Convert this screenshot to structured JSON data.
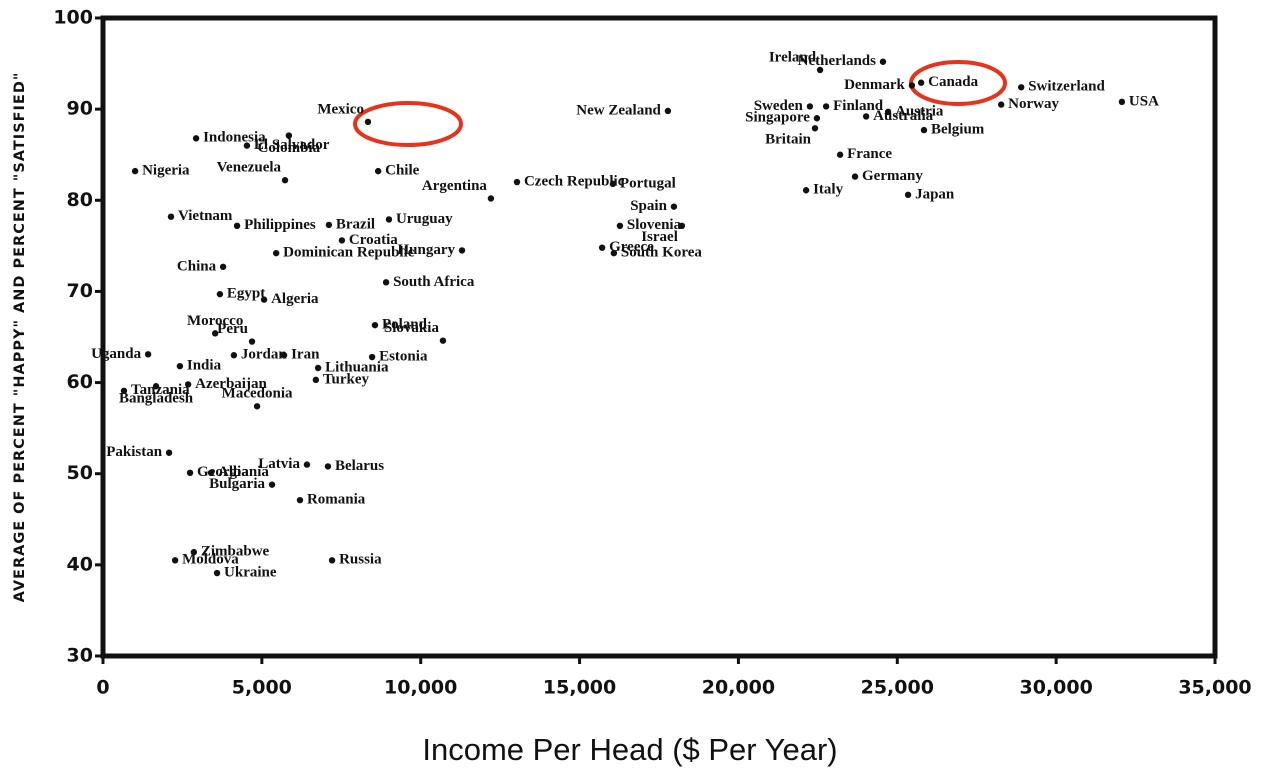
{
  "chart_data": {
    "type": "scatter",
    "x_label": "Income Per Head ($ Per Year)",
    "y_label": "AVERAGE OF PERCENT \"HAPPY\" AND PERCENT \"SATISFIED\"",
    "xlim": [
      0,
      35000
    ],
    "ylim": [
      30,
      100
    ],
    "xticks": [
      0,
      {
        "value": 5000,
        "label": "5,000"
      },
      {
        "value": 10000,
        "label": "10,000"
      },
      {
        "value": 15000,
        "label": "15,000"
      },
      {
        "value": 20000,
        "label": "20,000"
      },
      {
        "value": 25000,
        "label": "25,000"
      },
      {
        "value": 30000,
        "label": "30,000"
      },
      {
        "value": 35000,
        "label": "35,000"
      }
    ],
    "yticks": [
      30,
      40,
      50,
      60,
      70,
      80,
      90,
      100
    ],
    "color": "#111111",
    "points": [
      {
        "label": "Ireland",
        "x": 22570,
        "y": 94.3
      },
      {
        "label": "Netherlands",
        "x": 24550,
        "y": 95.2
      },
      {
        "label": "Denmark",
        "x": 25460,
        "y": 92.6
      },
      {
        "label": "Canada",
        "x": 25750,
        "y": 92.9
      },
      {
        "label": "Switzerland",
        "x": 28900,
        "y": 92.4
      },
      {
        "label": "USA",
        "x": 32070,
        "y": 90.8
      },
      {
        "label": "Norway",
        "x": 28270,
        "y": 90.5
      },
      {
        "label": "New Zealand",
        "x": 17780,
        "y": 89.8
      },
      {
        "label": "Sweden",
        "x": 22250,
        "y": 90.3
      },
      {
        "label": "Finland",
        "x": 22760,
        "y": 90.3
      },
      {
        "label": "Singapore",
        "x": 22470,
        "y": 89.0
      },
      {
        "label": "Austria",
        "x": 24710,
        "y": 89.7
      },
      {
        "label": "Australia",
        "x": 24020,
        "y": 89.2
      },
      {
        "label": "Britain",
        "x": 22410,
        "y": 87.9
      },
      {
        "label": "Belgium",
        "x": 25840,
        "y": 87.7
      },
      {
        "label": "France",
        "x": 23200,
        "y": 85.0
      },
      {
        "label": "Germany",
        "x": 23670,
        "y": 82.6
      },
      {
        "label": "Italy",
        "x": 22130,
        "y": 81.1
      },
      {
        "label": "Japan",
        "x": 25340,
        "y": 80.6
      },
      {
        "label": "Mexico",
        "x": 8340,
        "y": 88.6
      },
      {
        "label": "Indonesia",
        "x": 2930,
        "y": 86.8
      },
      {
        "label": "Colombia",
        "x": 5850,
        "y": 87.1
      },
      {
        "label": "El Salvador",
        "x": 4530,
        "y": 86.0
      },
      {
        "label": "Nigeria",
        "x": 1010,
        "y": 83.2
      },
      {
        "label": "Chile",
        "x": 8660,
        "y": 83.2
      },
      {
        "label": "Venezuela",
        "x": 5730,
        "y": 82.2
      },
      {
        "label": "Czech Republic",
        "x": 13030,
        "y": 82.0
      },
      {
        "label": "Portugal",
        "x": 16050,
        "y": 81.8
      },
      {
        "label": "Argentina",
        "x": 12210,
        "y": 80.2
      },
      {
        "label": "Vietnam",
        "x": 2140,
        "y": 78.2
      },
      {
        "label": "Brazil",
        "x": 7110,
        "y": 77.3
      },
      {
        "label": "Uruguay",
        "x": 9000,
        "y": 77.9
      },
      {
        "label": "Spain",
        "x": 17970,
        "y": 79.3
      },
      {
        "label": "Slovenia",
        "x": 16270,
        "y": 77.2
      },
      {
        "label": "Israel",
        "x": 18220,
        "y": 77.2
      },
      {
        "label": "Philippines",
        "x": 4220,
        "y": 77.2
      },
      {
        "label": "Croatia",
        "x": 7520,
        "y": 75.6
      },
      {
        "label": "Hungary",
        "x": 11300,
        "y": 74.5
      },
      {
        "label": "Greece",
        "x": 15710,
        "y": 74.8
      },
      {
        "label": "South Korea",
        "x": 16080,
        "y": 74.2
      },
      {
        "label": "Dominican Republic",
        "x": 5450,
        "y": 74.2
      },
      {
        "label": "China",
        "x": 3780,
        "y": 72.7
      },
      {
        "label": "Egypt",
        "x": 3680,
        "y": 69.7
      },
      {
        "label": "South Africa",
        "x": 8910,
        "y": 71.0
      },
      {
        "label": "Algeria",
        "x": 5070,
        "y": 69.1
      },
      {
        "label": "Poland",
        "x": 8560,
        "y": 66.3
      },
      {
        "label": "Slovakia",
        "x": 10700,
        "y": 64.6
      },
      {
        "label": "Morocco",
        "x": 3530,
        "y": 65.4
      },
      {
        "label": "Peru",
        "x": 4690,
        "y": 64.5
      },
      {
        "label": "Uganda",
        "x": 1420,
        "y": 63.1
      },
      {
        "label": "Jordan",
        "x": 4120,
        "y": 63.0
      },
      {
        "label": "Iran",
        "x": 5700,
        "y": 63.0
      },
      {
        "label": "Estonia",
        "x": 8470,
        "y": 62.8
      },
      {
        "label": "India",
        "x": 2420,
        "y": 61.8
      },
      {
        "label": "Lithuania",
        "x": 6770,
        "y": 61.6
      },
      {
        "label": "Turkey",
        "x": 6700,
        "y": 60.3
      },
      {
        "label": "Azerbaijan",
        "x": 2680,
        "y": 59.8
      },
      {
        "label": "Bangladesh",
        "x": 1670,
        "y": 59.6
      },
      {
        "label": "Tanzania",
        "x": 660,
        "y": 59.1
      },
      {
        "label": "Macedonia",
        "x": 4850,
        "y": 57.4
      },
      {
        "label": "Pakistan",
        "x": 2080,
        "y": 52.3
      },
      {
        "label": "Latvia",
        "x": 6420,
        "y": 51.0
      },
      {
        "label": "Belarus",
        "x": 7080,
        "y": 50.8
      },
      {
        "label": "Georgia",
        "x": 2740,
        "y": 50.1
      },
      {
        "label": "Albania",
        "x": 3400,
        "y": 50.1
      },
      {
        "label": "Bulgaria",
        "x": 5320,
        "y": 48.8
      },
      {
        "label": "Romania",
        "x": 6200,
        "y": 47.1
      },
      {
        "label": "Moldova",
        "x": 2270,
        "y": 40.5
      },
      {
        "label": "Zimbabwe",
        "x": 2860,
        "y": 41.4
      },
      {
        "label": "Russia",
        "x": 7210,
        "y": 40.5
      },
      {
        "label": "Ukraine",
        "x": 3590,
        "y": 39.1
      }
    ]
  }
}
